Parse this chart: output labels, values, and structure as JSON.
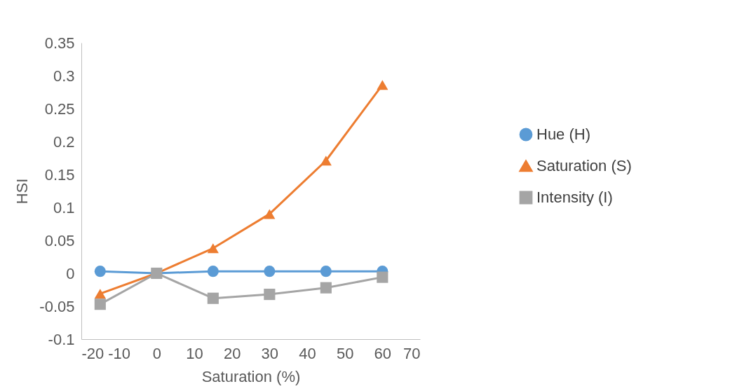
{
  "chart_data": {
    "type": "line",
    "xlabel": "Saturation (%)",
    "ylabel": "HSI",
    "x": [
      -15,
      0,
      15,
      30,
      45,
      60
    ],
    "series": [
      {
        "name": "Hue (H)",
        "color": "#5b9bd5",
        "marker": "circle",
        "values": [
          0.003,
          0,
          0.003,
          0.003,
          0.003,
          0.003
        ]
      },
      {
        "name": "Saturation (S)",
        "color": "#ed7d31",
        "marker": "triangle",
        "values": [
          -0.031,
          0,
          0.038,
          0.09,
          0.171,
          0.286
        ]
      },
      {
        "name": "Intensity (I)",
        "color": "#a5a5a5",
        "marker": "square",
        "values": [
          -0.047,
          0,
          -0.038,
          -0.032,
          -0.022,
          -0.006
        ]
      }
    ],
    "xlim": [
      -20,
      70
    ],
    "xticks": [
      -20,
      -10,
      0,
      10,
      20,
      30,
      40,
      50,
      60,
      70
    ],
    "ylim": [
      -0.1,
      0.35
    ],
    "yticks": [
      -0.1,
      -0.05,
      0,
      0.05,
      0.1,
      0.15,
      0.2,
      0.25,
      0.3,
      0.35
    ],
    "grid": false,
    "legend": "right",
    "line_style": "solid"
  }
}
